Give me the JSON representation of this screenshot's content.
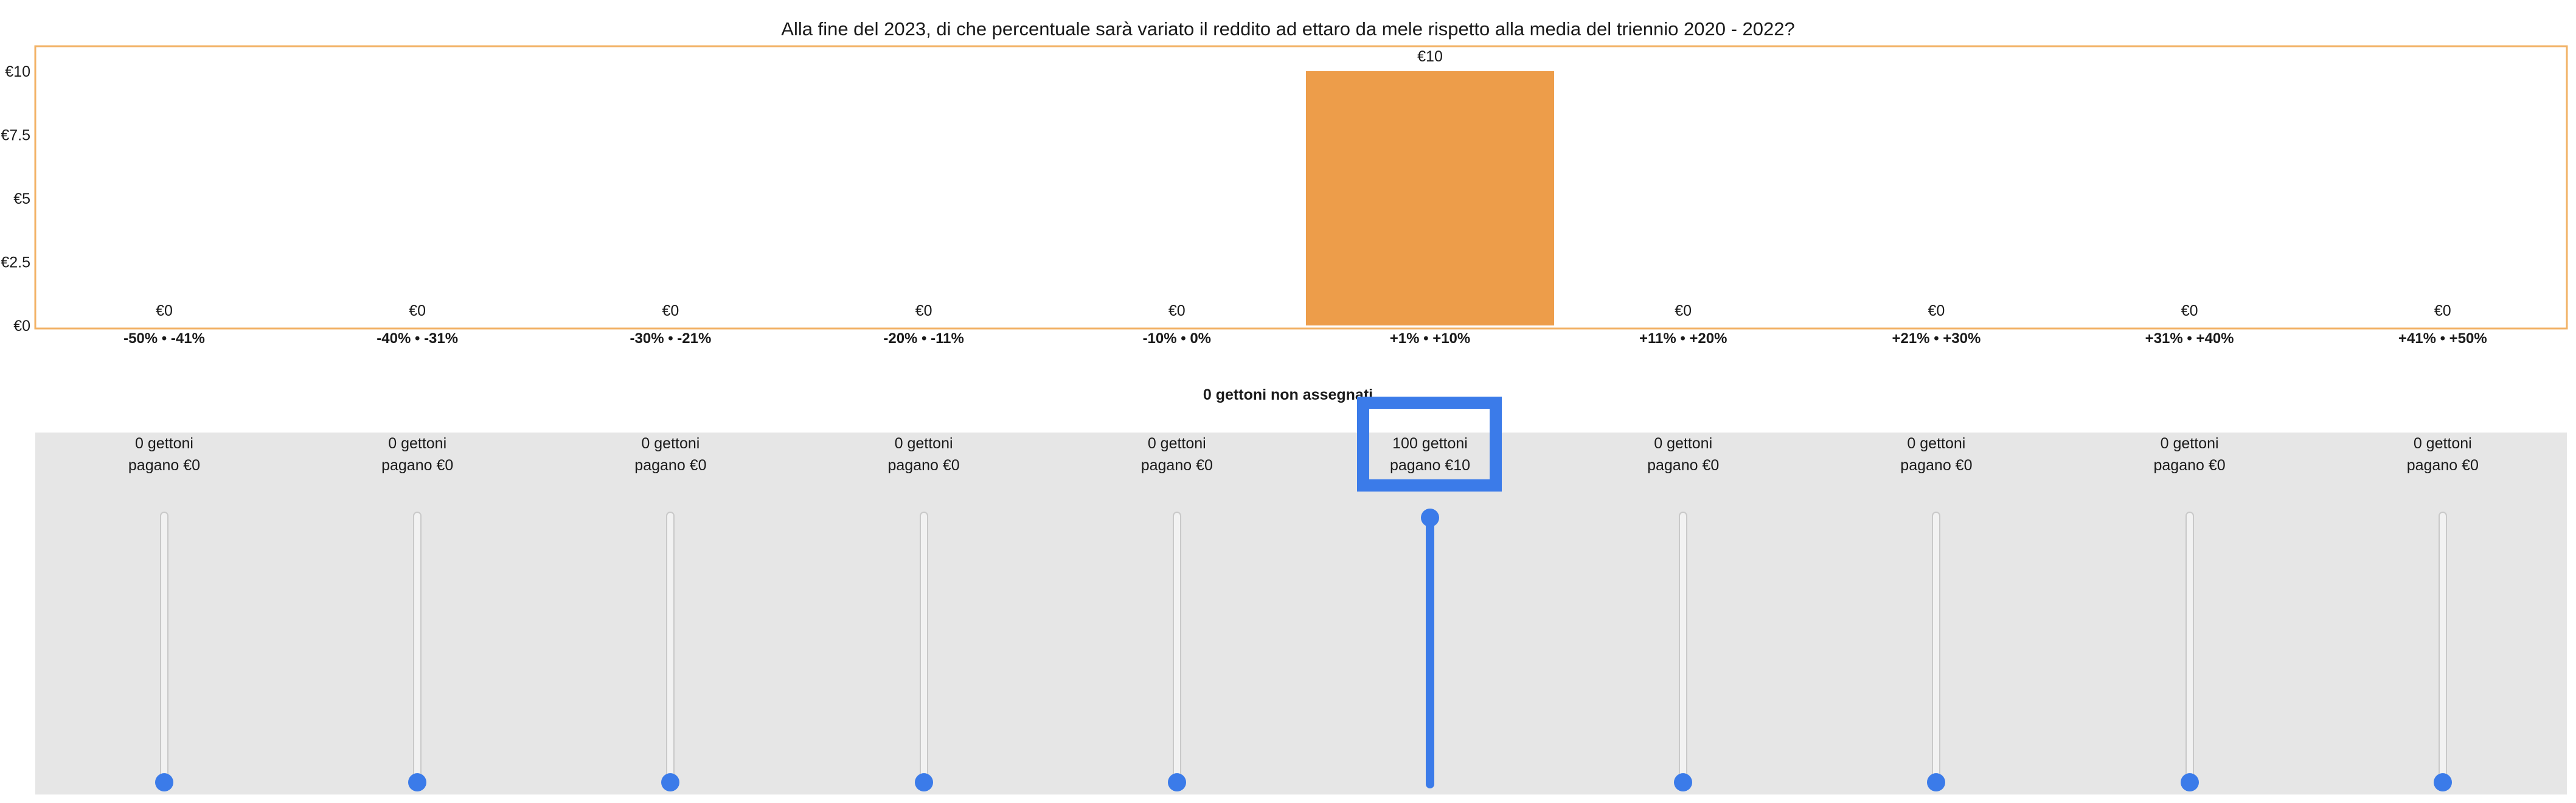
{
  "question": "Alla fine del 2023, di che percentuale sarà variato il reddito ad ettaro da mele rispetto alla media del triennio 2020 - 2022?",
  "unassigned_label": "0 gettoni non assegnati",
  "colors": {
    "bar": "#ED9D4A",
    "chart_border": "#F2B266",
    "accent": "#3B7BE9",
    "panel": "#E6E6E6"
  },
  "chart_data": {
    "type": "bar",
    "title": "",
    "xlabel": "",
    "ylabel": "",
    "ylim": [
      0,
      10
    ],
    "y_ticks": [
      "€0",
      "€2.5",
      "€5",
      "€7.5",
      "€10"
    ],
    "y_tick_values": [
      0,
      2.5,
      5,
      7.5,
      10
    ],
    "categories": [
      "-50% • -41%",
      "-40% • -31%",
      "-30% • -21%",
      "-20% • -11%",
      "-10% • 0%",
      "+1% • +10%",
      "+11% • +20%",
      "+21% • +30%",
      "+31% • +40%",
      "+41% • +50%"
    ],
    "values": [
      0,
      0,
      0,
      0,
      0,
      10,
      0,
      0,
      0,
      0
    ],
    "data_labels": [
      "€0",
      "€0",
      "€0",
      "€0",
      "€0",
      "€10",
      "€0",
      "€0",
      "€0",
      "€0"
    ],
    "grid": false
  },
  "sliders": [
    {
      "line1": "0 gettoni",
      "line2": "pagano €0",
      "value": 0
    },
    {
      "line1": "0 gettoni",
      "line2": "pagano €0",
      "value": 0
    },
    {
      "line1": "0 gettoni",
      "line2": "pagano €0",
      "value": 0
    },
    {
      "line1": "0 gettoni",
      "line2": "pagano €0",
      "value": 0
    },
    {
      "line1": "0 gettoni",
      "line2": "pagano €0",
      "value": 0
    },
    {
      "line1": "100 gettoni",
      "line2": "pagano €10",
      "value": 100
    },
    {
      "line1": "0 gettoni",
      "line2": "pagano €0",
      "value": 0
    },
    {
      "line1": "0 gettoni",
      "line2": "pagano €0",
      "value": 0
    },
    {
      "line1": "0 gettoni",
      "line2": "pagano €0",
      "value": 0
    },
    {
      "line1": "0 gettoni",
      "line2": "pagano €0",
      "value": 0
    }
  ],
  "slider_max": 100
}
